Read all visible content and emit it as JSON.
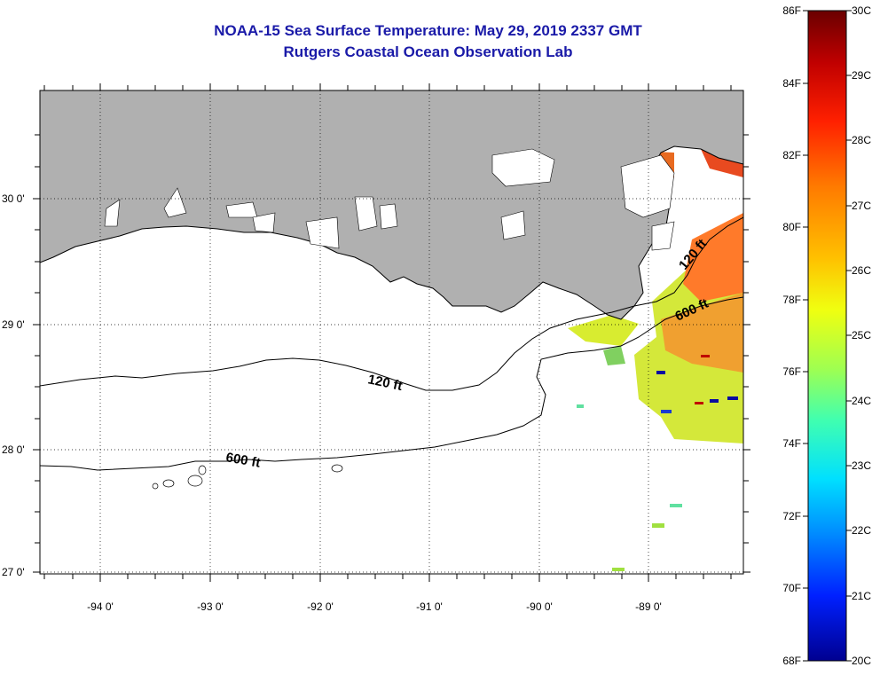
{
  "header": {
    "title": "NOAA-15 Sea Surface Temperature:  May 29, 2019 2337 GMT",
    "subtitle": "Rutgers Coastal Ocean Observation Lab"
  },
  "map": {
    "type": "sea-surface-temperature",
    "lon_range": [
      -94.55,
      -88.2
    ],
    "lat_range": [
      26.95,
      30.85
    ],
    "lon_ticks": [
      "-94 0'",
      "-93 0'",
      "-92 0'",
      "-91 0'",
      "-90 0'",
      "-89 0'"
    ],
    "lat_ticks": [
      "30 0'",
      "29 0'",
      "28 0'",
      "27 0'"
    ],
    "land_color": "#b0b0b0",
    "grid": "dotted",
    "contours": [
      {
        "label": "120 ft"
      },
      {
        "label": "600 ft"
      }
    ]
  },
  "colorbar": {
    "fahrenheit": [
      "86F",
      "84F",
      "82F",
      "80F",
      "78F",
      "76F",
      "74F",
      "72F",
      "70F",
      "68F"
    ],
    "celsius": [
      "30C",
      "29C",
      "28C",
      "27C",
      "26C",
      "25C",
      "24C",
      "23C",
      "22C",
      "21C",
      "20C"
    ],
    "colors": [
      "#7a0000",
      "#d40000",
      "#ff2a00",
      "#ff7a00",
      "#ffd400",
      "#e6ff1a",
      "#7aff7a",
      "#1affd4",
      "#00a0ff",
      "#0033ff",
      "#0000b0"
    ]
  }
}
